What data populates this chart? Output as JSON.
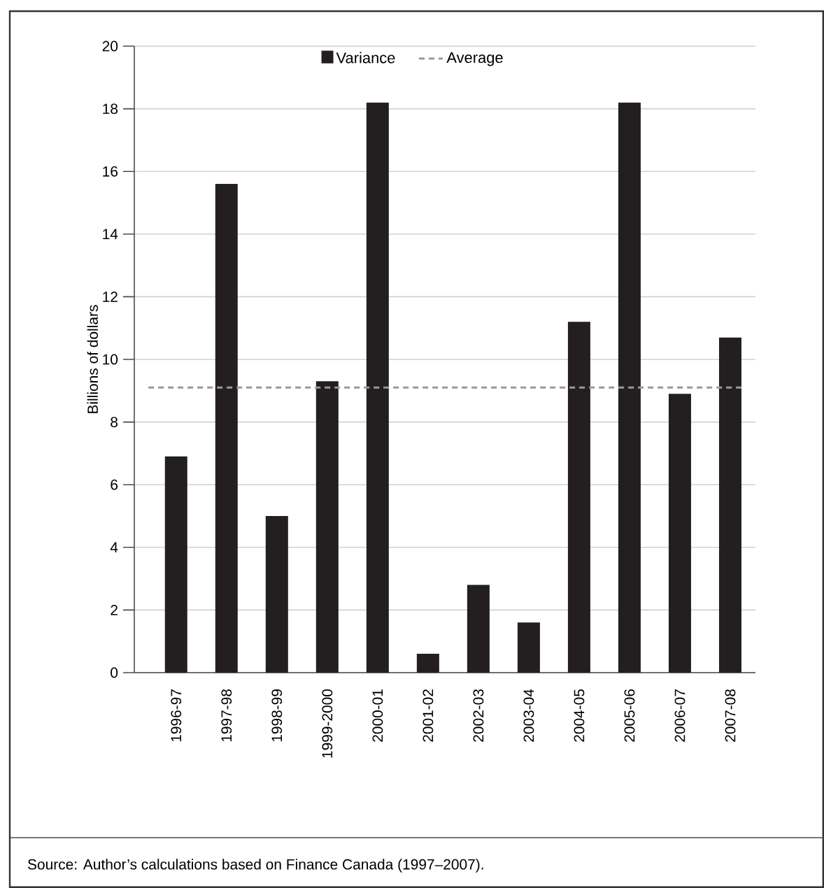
{
  "chart_data": {
    "type": "bar",
    "ylabel": "Billions of dollars",
    "categories": [
      "1996-97",
      "1997-98",
      "1998-99",
      "1999-2000",
      "2000-01",
      "2001-02",
      "2002-03",
      "2003-04",
      "2004-05",
      "2005-06",
      "2006-07",
      "2007-08"
    ],
    "series": [
      {
        "name": "Variance",
        "color": "#231f20",
        "values": [
          6.9,
          15.6,
          5.0,
          9.3,
          18.2,
          0.6,
          2.8,
          1.6,
          11.2,
          18.2,
          8.9,
          10.7
        ]
      }
    ],
    "ylim": [
      0,
      20
    ],
    "yticks": [
      0,
      2,
      4,
      6,
      8,
      10,
      12,
      14,
      16,
      18,
      20
    ],
    "ref_lines": [
      {
        "axis": "y",
        "value": 9.1,
        "label": "Average",
        "color": "#999999",
        "line_style": "dashed"
      }
    ],
    "grid": "y",
    "legend": "top",
    "annotations": [
      "Source: Author’s calculations based on Finance Canada (1997–2007)."
    ]
  }
}
